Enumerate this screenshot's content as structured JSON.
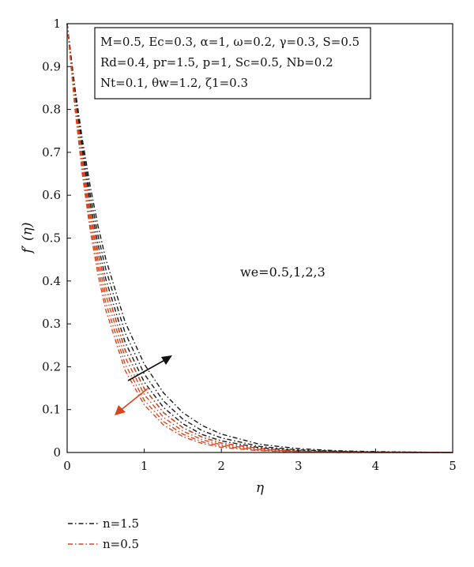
{
  "chart_data": {
    "type": "line",
    "xlabel": "η",
    "ylabel": "f′ (η)",
    "xlim": [
      0,
      5
    ],
    "ylim": [
      0,
      1
    ],
    "xticks": [
      "0",
      "1",
      "2",
      "3",
      "4",
      "5"
    ],
    "yticks": [
      "0",
      "0.1",
      "0.2",
      "0.3",
      "0.4",
      "0.5",
      "0.6",
      "0.7",
      "0.8",
      "0.9",
      "1"
    ],
    "grid": false,
    "annotation": "we=0.5,1,2,3",
    "parameter_lines": [
      "M=0.5, Ec=0.3, α=1, ω=0.2, γ=0.3, S=0.5",
      "Rd=0.4, pr=1.5, p=1, Sc=0.5, Nb=0.2",
      "Nt=0.1, θw=1.2, ζ1=0.3"
    ],
    "x": [
      0,
      0.1,
      0.2,
      0.3,
      0.4,
      0.5,
      0.75,
      1,
      1.25,
      1.5,
      1.75,
      2,
      2.5,
      3,
      3.5,
      4,
      4.5,
      5
    ],
    "series": [
      {
        "name": "n=1.5",
        "color": "#1a1a1a",
        "dash": "dashdot",
        "we": 0.5,
        "values": [
          1,
          0.85,
          0.727,
          0.62,
          0.529,
          0.452,
          0.305,
          0.206,
          0.139,
          0.093,
          0.063,
          0.043,
          0.019,
          0.009,
          0.004,
          0.002,
          0.001,
          0
        ]
      },
      {
        "name": "n=1.5",
        "color": "#1a1a1a",
        "dash": "dashdot",
        "we": 1,
        "values": [
          1,
          0.844,
          0.712,
          0.601,
          0.507,
          0.428,
          0.28,
          0.183,
          0.12,
          0.078,
          0.051,
          0.034,
          0.014,
          0.006,
          0.003,
          0.001,
          0.001,
          0
        ]
      },
      {
        "name": "n=1.5",
        "color": "#1a1a1a",
        "dash": "dashdot",
        "we": 2,
        "values": [
          1,
          0.835,
          0.697,
          0.582,
          0.486,
          0.405,
          0.258,
          0.164,
          0.105,
          0.067,
          0.042,
          0.027,
          0.011,
          0.004,
          0.002,
          0.001,
          0,
          0
        ]
      },
      {
        "name": "n=1.5",
        "color": "#1a1a1a",
        "dash": "dashdot",
        "we": 3,
        "values": [
          1,
          0.827,
          0.683,
          0.565,
          0.467,
          0.386,
          0.24,
          0.149,
          0.093,
          0.058,
          0.036,
          0.022,
          0.009,
          0.003,
          0.001,
          0.001,
          0,
          0
        ]
      },
      {
        "name": "n=0.5",
        "color": "#d9441c",
        "dash": "dashdot",
        "we": 0.5,
        "values": [
          1,
          0.827,
          0.683,
          0.565,
          0.467,
          0.386,
          0.24,
          0.149,
          0.093,
          0.058,
          0.036,
          0.022,
          0.009,
          0.003,
          0.001,
          0.001,
          0,
          0
        ]
      },
      {
        "name": "n=0.5",
        "color": "#d9441c",
        "dash": "dashdot",
        "we": 1,
        "values": [
          1,
          0.819,
          0.67,
          0.549,
          0.449,
          0.368,
          0.223,
          0.135,
          0.082,
          0.05,
          0.03,
          0.018,
          0.007,
          0.002,
          0.001,
          0,
          0,
          0
        ]
      },
      {
        "name": "n=0.5",
        "color": "#d9441c",
        "dash": "dashdot",
        "we": 2,
        "values": [
          1,
          0.811,
          0.657,
          0.533,
          0.432,
          0.35,
          0.207,
          0.122,
          0.072,
          0.043,
          0.025,
          0.015,
          0.005,
          0.002,
          0.001,
          0,
          0,
          0
        ]
      },
      {
        "name": "n=0.5",
        "color": "#d9441c",
        "dash": "dashdot",
        "we": 3,
        "values": [
          1,
          0.803,
          0.645,
          0.517,
          0.415,
          0.333,
          0.192,
          0.111,
          0.064,
          0.037,
          0.021,
          0.012,
          0.004,
          0.001,
          0,
          0,
          0,
          0
        ]
      }
    ],
    "legend": [
      {
        "label": "n=1.5",
        "color": "#1a1a1a"
      },
      {
        "label": "n=0.5",
        "color": "#d9441c"
      }
    ],
    "legend_position": "bottom-left"
  }
}
